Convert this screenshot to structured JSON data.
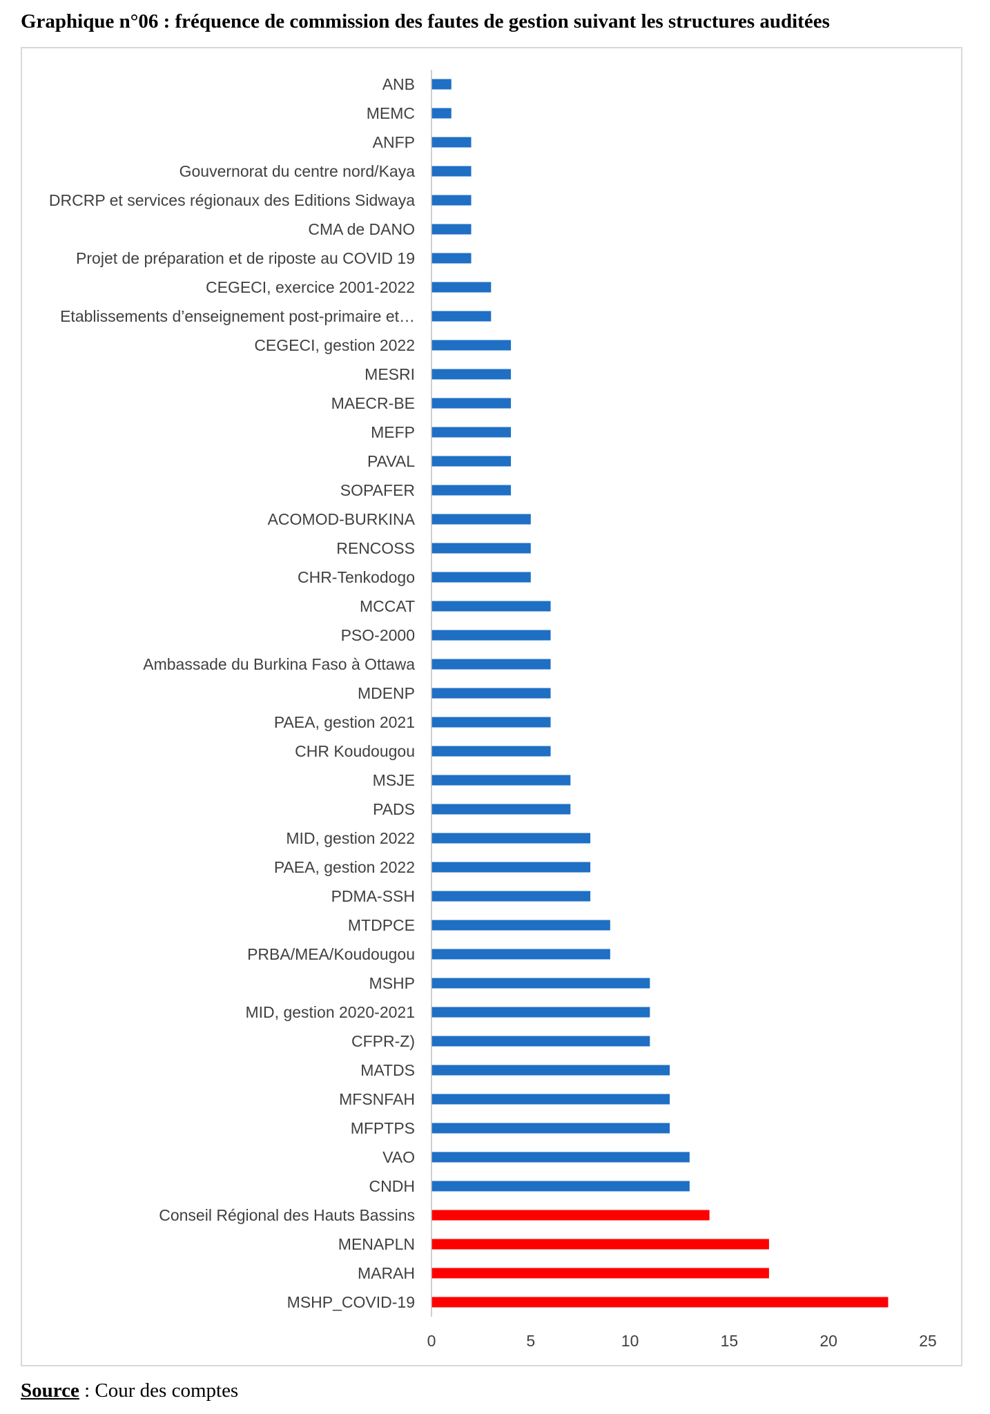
{
  "title": "Graphique n°06 : fréquence de commission des fautes de gestion suivant les structures auditées",
  "source": {
    "label": "Source",
    "separator": " : ",
    "text": "Cour des comptes"
  },
  "chart_data": {
    "type": "bar",
    "orientation": "horizontal",
    "title": "",
    "xlabel": "",
    "ylabel": "",
    "xlim": [
      0,
      25
    ],
    "xticks": [
      0,
      5,
      10,
      15,
      20,
      25
    ],
    "grid": false,
    "legend": "none",
    "colors": {
      "default": "#1f6fc4",
      "highlight": "#ff0000",
      "axis": "#bfbfbf"
    },
    "categories": [
      "ANB",
      "MEMC",
      "ANFP",
      "Gouvernorat du centre nord/Kaya",
      "DRCRP et services régionaux des Editions Sidwaya",
      "CMA de DANO",
      "Projet de préparation et de riposte au COVID 19",
      "CEGECI, exercice 2001-2022",
      "Etablissements d’enseignement post-primaire et…",
      "CEGECI, gestion 2022",
      "MESRI",
      "MAECR-BE",
      "MEFP",
      "PAVAL",
      "SOPAFER",
      "ACOMOD-BURKINA",
      "RENCOSS",
      "CHR-Tenkodogo",
      "MCCAT",
      "PSO-2000",
      "Ambassade du Burkina Faso à Ottawa",
      "MDENP",
      "PAEA, gestion 2021",
      "CHR Koudougou",
      "MSJE",
      "PADS",
      "MID, gestion 2022",
      "PAEA, gestion 2022",
      "PDMA-SSH",
      "MTDPCE",
      "PRBA/MEA/Koudougou",
      "MSHP",
      "MID, gestion 2020-2021",
      "CFPR-Z)",
      "MATDS",
      "MFSNFAH",
      "MFPTPS",
      "VAO",
      "CNDH",
      "Conseil Régional des Hauts Bassins",
      "MENAPLN",
      "MARAH",
      "MSHP_COVID-19"
    ],
    "values": [
      1,
      1,
      2,
      2,
      2,
      2,
      2,
      3,
      3,
      4,
      4,
      4,
      4,
      4,
      4,
      5,
      5,
      5,
      6,
      6,
      6,
      6,
      6,
      6,
      7,
      7,
      8,
      8,
      8,
      9,
      9,
      11,
      11,
      11,
      12,
      12,
      12,
      13,
      13,
      14,
      17,
      17,
      23
    ],
    "highlighted": [
      false,
      false,
      false,
      false,
      false,
      false,
      false,
      false,
      false,
      false,
      false,
      false,
      false,
      false,
      false,
      false,
      false,
      false,
      false,
      false,
      false,
      false,
      false,
      false,
      false,
      false,
      false,
      false,
      false,
      false,
      false,
      false,
      false,
      false,
      false,
      false,
      false,
      false,
      false,
      true,
      true,
      true,
      true
    ]
  }
}
